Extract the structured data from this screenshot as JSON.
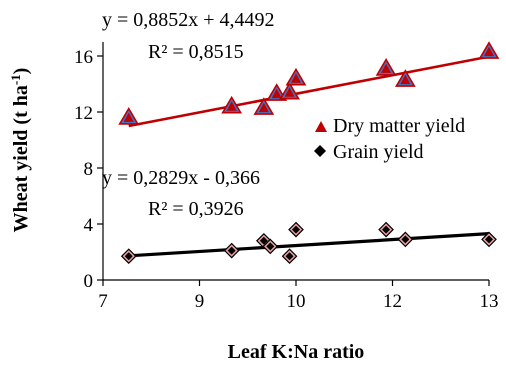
{
  "chart_data": {
    "type": "scatter",
    "xlabel": "Leaf K:Na ratio",
    "ylabel": "Wheat yield (t ha-1)",
    "ylabel_parts": {
      "main": "Wheat yield (t ha",
      "sup": "-1",
      "end": ")"
    },
    "xlim": [
      7,
      13
    ],
    "ylim": [
      0,
      17
    ],
    "xticks": [
      7,
      9,
      10,
      12,
      13
    ],
    "xtick_positions": [
      7,
      8.5,
      10,
      11.5,
      13
    ],
    "yticks": [
      0,
      4,
      8,
      12,
      16
    ],
    "legend_position": "right",
    "series": [
      {
        "name": "Dry matter yield",
        "marker": "triangle",
        "color": "#c00000",
        "marker_fill": "#4472c4",
        "x": [
          7.4,
          9.0,
          9.5,
          9.7,
          9.9,
          10.0,
          11.4,
          11.7,
          13.0
        ],
        "y": [
          11.6,
          12.4,
          12.3,
          13.3,
          13.4,
          14.4,
          15.1,
          14.3,
          16.3
        ],
        "trendline": {
          "slope": 0.8852,
          "intercept": 4.4492,
          "equation": "y = 0,8852x + 4,4492",
          "r2": "R² = 0,8515"
        }
      },
      {
        "name": "Grain yield",
        "marker": "diamond",
        "color": "#000000",
        "marker_fill": "#e8a0a0",
        "x": [
          7.4,
          9.0,
          9.5,
          9.6,
          9.9,
          10.0,
          11.4,
          11.7,
          13.0
        ],
        "y": [
          1.7,
          2.1,
          2.8,
          2.4,
          1.7,
          3.6,
          3.6,
          2.9,
          2.9
        ],
        "trendline": {
          "slope": 0.2829,
          "intercept": -0.366,
          "equation": "y = 0,2829x - 0,366",
          "r2": "R² = 0,3926"
        }
      }
    ]
  }
}
